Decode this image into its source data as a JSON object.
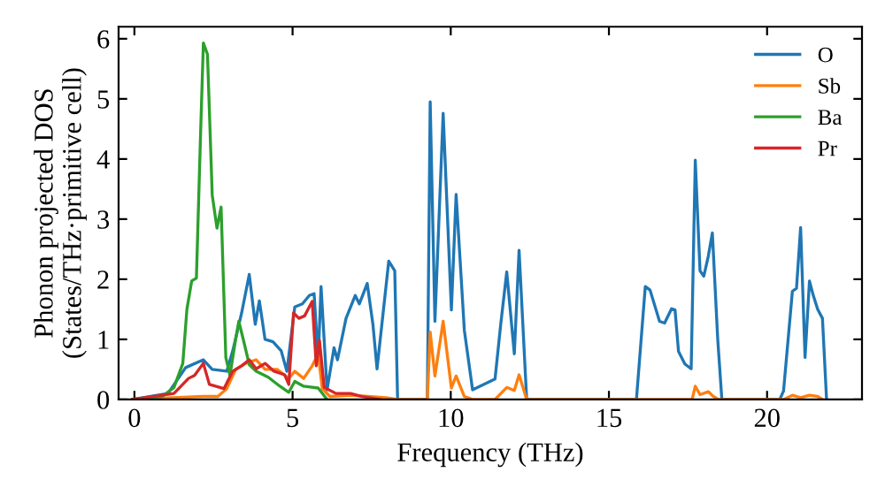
{
  "chart_data": {
    "type": "line",
    "xlabel": "Frequency (THz)",
    "ylabel": "Phonon projected DOS\n(States/THz·primitive cell)",
    "xlim": [
      -0.5,
      23
    ],
    "ylim": [
      0,
      6.2
    ],
    "xticks": [
      0,
      5,
      10,
      15,
      20
    ],
    "yticks": [
      0,
      1,
      2,
      3,
      4,
      5,
      6
    ],
    "grid": false,
    "legend": "top right",
    "marker": "none",
    "line_style": "solid",
    "series": [
      {
        "name": "O",
        "color": "#1f77b4",
        "x": [
          -0.06,
          1.06,
          1.62,
          2.18,
          2.46,
          2.92,
          3.11,
          3.39,
          3.63,
          3.82,
          3.95,
          4.13,
          4.38,
          4.64,
          4.82,
          5.07,
          5.31,
          5.53,
          5.68,
          5.81,
          5.9,
          6.09,
          6.31,
          6.42,
          6.69,
          6.98,
          7.11,
          7.36,
          7.54,
          7.67,
          8.04,
          8.23,
          8.32,
          9.26,
          9.35,
          9.5,
          9.76,
          10.02,
          10.17,
          10.43,
          10.69,
          11.4,
          11.58,
          11.77,
          12.01,
          12.16,
          12.4,
          15.87,
          16.15,
          16.3,
          16.6,
          16.76,
          16.98,
          17.09,
          17.2,
          17.4,
          17.6,
          17.73,
          17.88,
          18.0,
          18.14,
          18.27,
          18.44,
          18.57,
          20.4,
          20.52,
          20.8,
          20.93,
          21.06,
          21.2,
          21.34,
          21.45,
          21.6,
          21.75,
          21.88
        ],
        "values": [
          0,
          0.1,
          0.53,
          0.66,
          0.5,
          0.47,
          0.81,
          1.44,
          2.08,
          1.25,
          1.64,
          1.0,
          0.96,
          0.81,
          0.47,
          1.54,
          1.59,
          1.73,
          1.76,
          0.66,
          1.88,
          0.16,
          0.86,
          0.66,
          1.35,
          1.73,
          1.59,
          1.93,
          1.25,
          0.51,
          2.3,
          2.14,
          0,
          0,
          4.95,
          1.3,
          4.76,
          1.49,
          3.41,
          1.15,
          0.16,
          0.34,
          1.25,
          2.12,
          0.76,
          2.48,
          0,
          0,
          1.88,
          1.82,
          1.3,
          1.27,
          1.51,
          1.49,
          0.8,
          0.59,
          0.51,
          3.98,
          2.14,
          2.05,
          2.38,
          2.77,
          1.0,
          0,
          0,
          0.14,
          1.8,
          1.85,
          2.86,
          0.7,
          1.97,
          1.75,
          1.5,
          1.35,
          0
        ]
      },
      {
        "name": "Sb",
        "color": "#ff7f0e",
        "x": [
          -0.06,
          2.18,
          2.64,
          2.92,
          3.2,
          3.52,
          3.85,
          4.13,
          4.51,
          4.88,
          5.07,
          5.35,
          5.62,
          5.81,
          5.94,
          6.18,
          6.83,
          7.39,
          7.95,
          8.32,
          9.26,
          9.35,
          9.5,
          9.76,
          10.02,
          10.17,
          10.43,
          10.69,
          11.4,
          11.77,
          12.01,
          12.16,
          12.4,
          17.63,
          17.73,
          17.88,
          18.14,
          18.3,
          18.47,
          20.52,
          20.8,
          21.06,
          21.34,
          21.6,
          21.75
        ],
        "values": [
          0,
          0.05,
          0.05,
          0.18,
          0.5,
          0.6,
          0.66,
          0.5,
          0.5,
          0.35,
          0.47,
          0.35,
          0.56,
          0.76,
          0.18,
          0.05,
          0.07,
          0.05,
          0.03,
          0,
          0,
          1.12,
          0.39,
          1.3,
          0.19,
          0.39,
          0.05,
          0,
          0,
          0.2,
          0.15,
          0.41,
          0,
          0,
          0.22,
          0.08,
          0.13,
          0.05,
          0,
          0,
          0.07,
          0.03,
          0.07,
          0.05,
          0
        ]
      },
      {
        "name": "Ba",
        "color": "#2ca02c",
        "x": [
          -0.06,
          0.88,
          1.25,
          1.53,
          1.66,
          1.81,
          1.96,
          2.09,
          2.18,
          2.31,
          2.46,
          2.61,
          2.74,
          2.89,
          3.02,
          3.2,
          3.3,
          3.45,
          3.63,
          3.85,
          4.23,
          4.6,
          4.88,
          5.07,
          5.35,
          5.81,
          6.09
        ],
        "values": [
          0,
          0.05,
          0.2,
          0.6,
          1.5,
          1.97,
          2.02,
          4.39,
          5.93,
          5.74,
          3.4,
          2.85,
          3.2,
          0.7,
          0.4,
          1.0,
          1.3,
          0.98,
          0.58,
          0.47,
          0.37,
          0.22,
          0.12,
          0.3,
          0.22,
          0.19,
          0
        ]
      },
      {
        "name": "Pr",
        "color": "#d62728",
        "x": [
          -0.06,
          1.25,
          1.71,
          1.9,
          2.18,
          2.37,
          2.83,
          3.11,
          3.39,
          3.63,
          3.85,
          4.13,
          4.41,
          4.75,
          4.88,
          5.03,
          5.2,
          5.38,
          5.62,
          5.75,
          5.85,
          6.0,
          6.37,
          6.83,
          7.2,
          7.77
        ],
        "values": [
          0,
          0.1,
          0.35,
          0.4,
          0.6,
          0.25,
          0.18,
          0.47,
          0.56,
          0.66,
          0.51,
          0.6,
          0.47,
          0.41,
          0.25,
          1.44,
          1.35,
          1.39,
          1.63,
          0.56,
          0.98,
          0.2,
          0.1,
          0.1,
          0.05,
          0
        ]
      }
    ]
  }
}
